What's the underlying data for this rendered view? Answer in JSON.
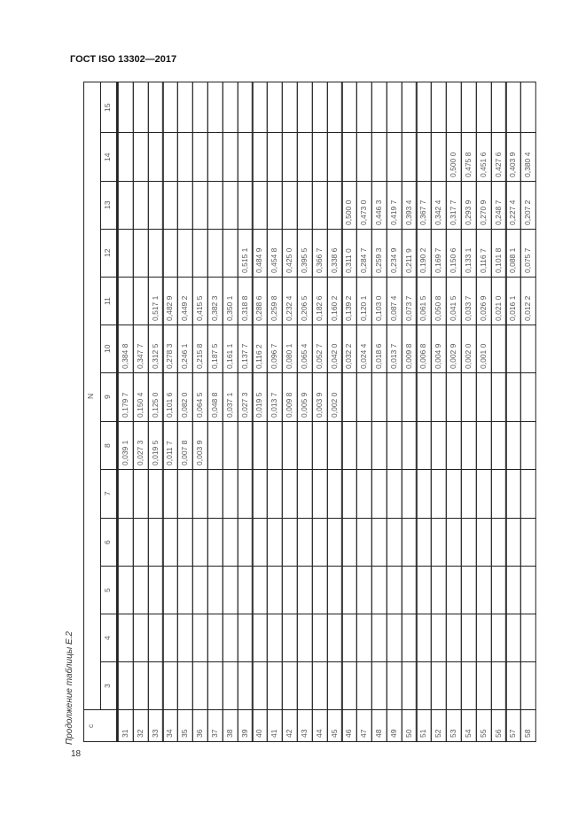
{
  "header": {
    "title": "ГОСТ ISO 13302—2017"
  },
  "caption": "Продолжение таблицы Е.2",
  "page_number": "18",
  "table": {
    "row_header": "c",
    "group_header": "N",
    "columns": [
      "3",
      "4",
      "5",
      "6",
      "7",
      "8",
      "9",
      "10",
      "11",
      "12",
      "13",
      "14",
      "15"
    ],
    "rows": [
      {
        "c": "31",
        "values": [
          "",
          "",
          "",
          "",
          "",
          "0,039 1",
          "0,179 7",
          "0,384 8",
          "",
          "",
          "",
          "",
          ""
        ]
      },
      {
        "c": "32",
        "values": [
          "",
          "",
          "",
          "",
          "",
          "0,027 3",
          "0,150 4",
          "0,347 7",
          "",
          "",
          "",
          "",
          ""
        ]
      },
      {
        "c": "33",
        "values": [
          "",
          "",
          "",
          "",
          "",
          "0,019 5",
          "0,125 0",
          "0,312 5",
          "0,517 1",
          "",
          "",
          "",
          ""
        ]
      },
      {
        "c": "34",
        "values": [
          "",
          "",
          "",
          "",
          "",
          "0,011 7",
          "0,101 6",
          "0,278 3",
          "0,482 9",
          "",
          "",
          "",
          ""
        ]
      },
      {
        "c": "35",
        "values": [
          "",
          "",
          "",
          "",
          "",
          "0,007 8",
          "0,082 0",
          "0,246 1",
          "0,449 2",
          "",
          "",
          "",
          ""
        ]
      },
      {
        "c": "36",
        "values": [
          "",
          "",
          "",
          "",
          "",
          "0,003 9",
          "0,064 5",
          "0,215 8",
          "0,415 5",
          "",
          "",
          "",
          ""
        ]
      },
      {
        "c": "37",
        "values": [
          "",
          "",
          "",
          "",
          "",
          "",
          "0,048 8",
          "0,187 5",
          "0,382 3",
          "",
          "",
          "",
          ""
        ]
      },
      {
        "c": "38",
        "values": [
          "",
          "",
          "",
          "",
          "",
          "",
          "0,037 1",
          "0,161 1",
          "0,350 1",
          "",
          "",
          "",
          ""
        ]
      },
      {
        "c": "39",
        "values": [
          "",
          "",
          "",
          "",
          "",
          "",
          "0,027 3",
          "0,137 7",
          "0,318 8",
          "0,515 1",
          "",
          "",
          ""
        ]
      },
      {
        "c": "40",
        "values": [
          "",
          "",
          "",
          "",
          "",
          "",
          "0,019 5",
          "0,116 2",
          "0,288 6",
          "0,484 9",
          "",
          "",
          ""
        ]
      },
      {
        "c": "41",
        "values": [
          "",
          "",
          "",
          "",
          "",
          "",
          "0,013 7",
          "0,096 7",
          "0,259 8",
          "0,454 8",
          "",
          "",
          ""
        ]
      },
      {
        "c": "42",
        "values": [
          "",
          "",
          "",
          "",
          "",
          "",
          "0,009 8",
          "0,080 1",
          "0,232 4",
          "0,425 0",
          "",
          "",
          ""
        ]
      },
      {
        "c": "43",
        "values": [
          "",
          "",
          "",
          "",
          "",
          "",
          "0,005 9",
          "0,065 4",
          "0,206 5",
          "0,395 5",
          "",
          "",
          ""
        ]
      },
      {
        "c": "44",
        "values": [
          "",
          "",
          "",
          "",
          "",
          "",
          "0,003 9",
          "0,052 7",
          "0,182 6",
          "0,366 7",
          "",
          "",
          ""
        ]
      },
      {
        "c": "45",
        "values": [
          "",
          "",
          "",
          "",
          "",
          "",
          "0,002 0",
          "0,042 0",
          "0,160 2",
          "0,338 6",
          "",
          "",
          ""
        ]
      },
      {
        "c": "46",
        "values": [
          "",
          "",
          "",
          "",
          "",
          "",
          "",
          "0,032 2",
          "0,139 2",
          "0,311 0",
          "0,500 0",
          "",
          ""
        ]
      },
      {
        "c": "47",
        "values": [
          "",
          "",
          "",
          "",
          "",
          "",
          "",
          "0,024 4",
          "0,120 1",
          "0,284 7",
          "0,473 0",
          "",
          ""
        ]
      },
      {
        "c": "48",
        "values": [
          "",
          "",
          "",
          "",
          "",
          "",
          "",
          "0,018 6",
          "0,103 0",
          "0,259 3",
          "0,446 3",
          "",
          ""
        ]
      },
      {
        "c": "49",
        "values": [
          "",
          "",
          "",
          "",
          "",
          "",
          "",
          "0,013 7",
          "0,087 4",
          "0,234 9",
          "0,419 7",
          "",
          ""
        ]
      },
      {
        "c": "50",
        "values": [
          "",
          "",
          "",
          "",
          "",
          "",
          "",
          "0,009 8",
          "0,073 7",
          "0,211 9",
          "0,393 4",
          "",
          ""
        ]
      },
      {
        "c": "51",
        "values": [
          "",
          "",
          "",
          "",
          "",
          "",
          "",
          "0,006 8",
          "0,061 5",
          "0,190 2",
          "0,367 7",
          "",
          ""
        ]
      },
      {
        "c": "52",
        "values": [
          "",
          "",
          "",
          "",
          "",
          "",
          "",
          "0,004 9",
          "0,050 8",
          "0,169 7",
          "0,342 4",
          "",
          ""
        ]
      },
      {
        "c": "53",
        "values": [
          "",
          "",
          "",
          "",
          "",
          "",
          "",
          "0,002 9",
          "0,041 5",
          "0,150 6",
          "0,317 7",
          "0,500 0",
          ""
        ]
      },
      {
        "c": "54",
        "values": [
          "",
          "",
          "",
          "",
          "",
          "",
          "",
          "0,002 0",
          "0,033 7",
          "0,133 1",
          "0,293 9",
          "0,475 8",
          ""
        ]
      },
      {
        "c": "55",
        "values": [
          "",
          "",
          "",
          "",
          "",
          "",
          "",
          "0,001 0",
          "0,026 9",
          "0,116 7",
          "0,270 9",
          "0,451 6",
          ""
        ]
      },
      {
        "c": "56",
        "values": [
          "",
          "",
          "",
          "",
          "",
          "",
          "",
          "",
          "0,021 0",
          "0,101 8",
          "0,248 7",
          "0,427 6",
          ""
        ]
      },
      {
        "c": "57",
        "values": [
          "",
          "",
          "",
          "",
          "",
          "",
          "",
          "",
          "0,016 1",
          "0,088 1",
          "0,227 4",
          "0,403 9",
          ""
        ]
      },
      {
        "c": "58",
        "values": [
          "",
          "",
          "",
          "",
          "",
          "",
          "",
          "",
          "0,012 2",
          "0,075 7",
          "0,207 2",
          "0,380 4",
          ""
        ]
      }
    ]
  }
}
